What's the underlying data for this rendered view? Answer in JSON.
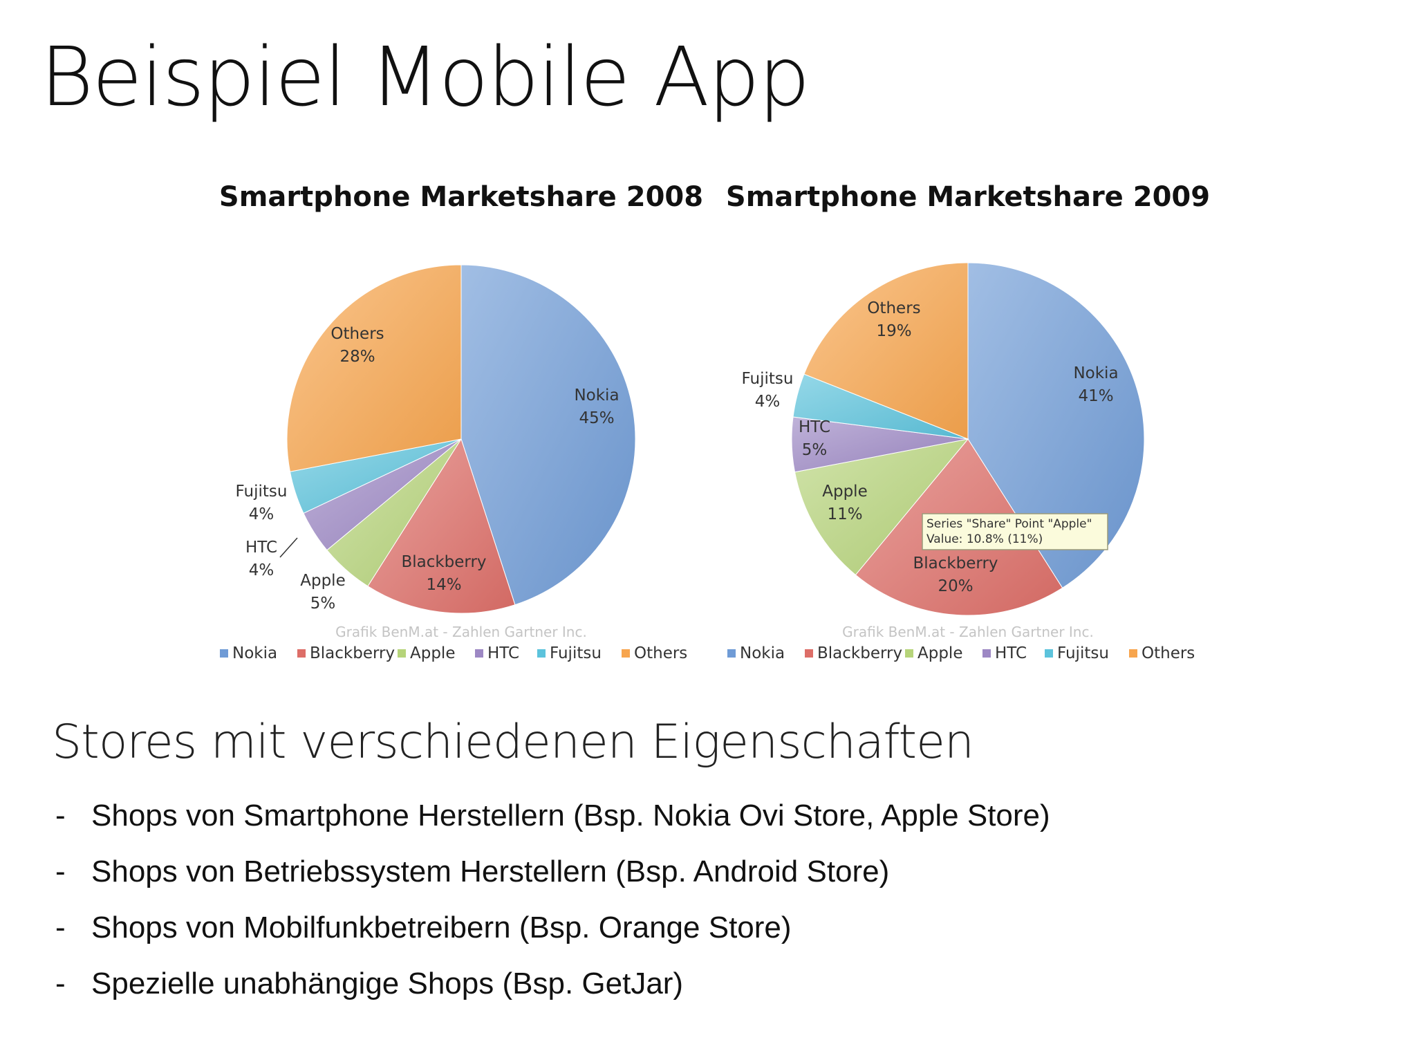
{
  "slide": {
    "title": "Beispiel Mobile App",
    "subtitle": "Stores mit verschiedenen Eigenschaften",
    "bullet_marker": "-",
    "bullets": [
      "Shops von Smartphone Herstellern (Bsp. Nokia Ovi Store, Apple Store)",
      "Shops von Betriebssystem Herstellern (Bsp. Android Store)",
      "Shops von Mobilfunkbetreibern (Bsp. Orange Store)",
      "Spezielle unabhängige Shops (Bsp. GetJar)"
    ]
  },
  "chart_data": [
    {
      "type": "pie",
      "title": "Smartphone Marketshare 2008",
      "credit": "Grafik BenM.at - Zahlen Gartner Inc.",
      "legend_position": "bottom",
      "categories": [
        "Nokia",
        "Blackberry",
        "Apple",
        "HTC",
        "Fujitsu",
        "Others"
      ],
      "values": [
        45,
        14,
        5,
        4,
        4,
        28
      ],
      "data_labels": [
        "45%",
        "14%",
        "5%",
        "4%",
        "4%",
        "28%"
      ],
      "colors": [
        "#6f9bd6",
        "#dd6e68",
        "#b6d47a",
        "#9d88c4",
        "#5cc3dc",
        "#f7a54e"
      ]
    },
    {
      "type": "pie",
      "title": "Smartphone Marketshare 2009",
      "credit": "Grafik BenM.at - Zahlen Gartner Inc.",
      "legend_position": "bottom",
      "categories": [
        "Nokia",
        "Blackberry",
        "Apple",
        "HTC",
        "Fujitsu",
        "Others"
      ],
      "values": [
        41,
        20,
        11,
        5,
        4,
        19
      ],
      "data_labels": [
        "41%",
        "20%",
        "11%",
        "5%",
        "4%",
        "19%"
      ],
      "colors": [
        "#6f9bd6",
        "#dd6e68",
        "#b6d47a",
        "#9d88c4",
        "#5cc3dc",
        "#f7a54e"
      ],
      "tooltip": {
        "line1": "Series \"Share\" Point \"Apple\"",
        "line2": "Value: 10.8% (11%)"
      }
    }
  ]
}
